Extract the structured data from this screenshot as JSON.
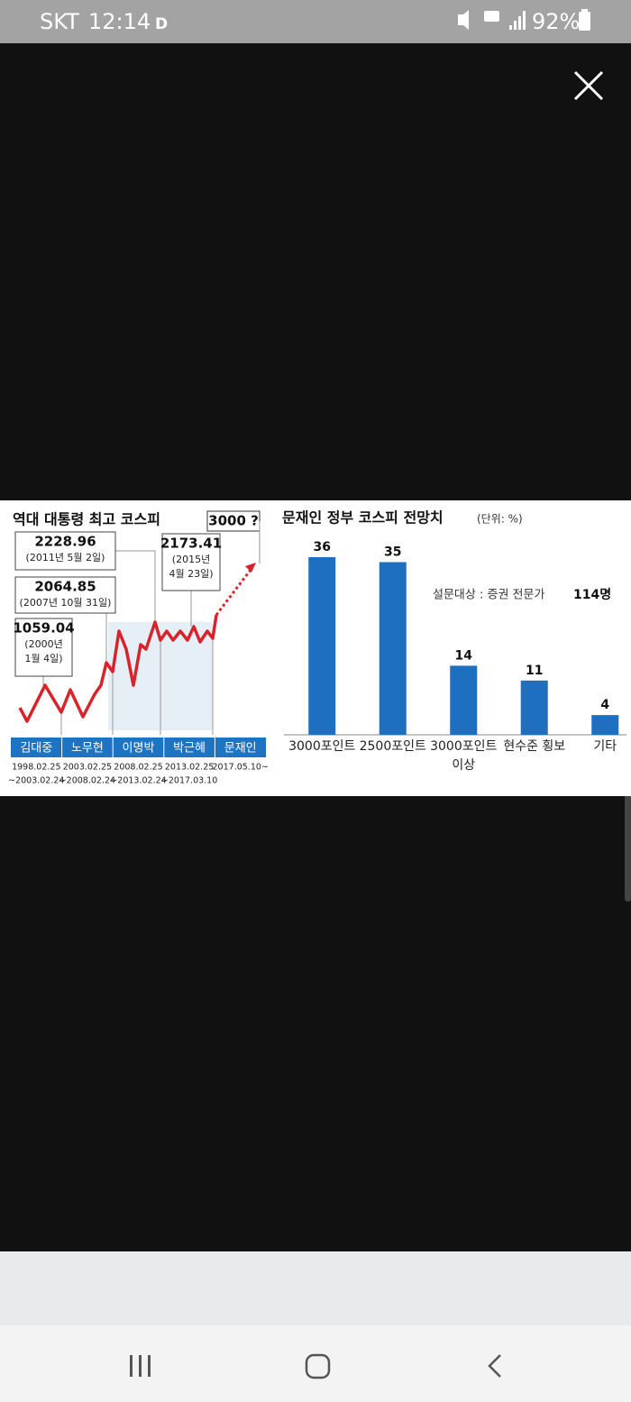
{
  "status_bar": {
    "carrier": "SKT",
    "time": "12:14",
    "battery": "92%"
  },
  "image": {
    "left_chart": {
      "title": "역대 대통령 최고 코스피",
      "target": "3000 ?",
      "annotations": [
        {
          "value": "2228.96",
          "date": [
            "(2011년 5월 2일)"
          ]
        },
        {
          "value": "2064.85",
          "date": [
            "(2007년 10월 31일)"
          ]
        },
        {
          "value": "1059.04",
          "date": [
            "(2000년",
            "1월 4일)"
          ]
        },
        {
          "value": "2173.41",
          "date": [
            "(2015년",
            "4월 23일)"
          ]
        }
      ],
      "presidents": [
        {
          "name": "김대중",
          "term": [
            "1998.02.25",
            "~2003.02.24"
          ]
        },
        {
          "name": "노무현",
          "term": [
            "2003.02.25",
            "~2008.02.24"
          ]
        },
        {
          "name": "이명박",
          "term": [
            "2008.02.25",
            "~2013.02.24"
          ]
        },
        {
          "name": "박근혜",
          "term": [
            "2013.02.25",
            "~2017.03.10"
          ]
        },
        {
          "name": "문재인",
          "term": [
            "2017.05.10~"
          ]
        }
      ]
    },
    "right_chart": {
      "type": "bar",
      "title": "문재인 정부 코스피 전망치",
      "unit": "(단위: %)",
      "note": "설문대상 : 증권 전문가",
      "note_count": "114명",
      "color": "#1f6fc0",
      "categories": [
        [
          "3000포인트"
        ],
        [
          "2500포인트"
        ],
        [
          "3000포인트",
          "이상"
        ],
        [
          "현수준 횡보"
        ],
        [
          "기타"
        ]
      ],
      "values": [
        36,
        35,
        14,
        11,
        4
      ]
    }
  }
}
